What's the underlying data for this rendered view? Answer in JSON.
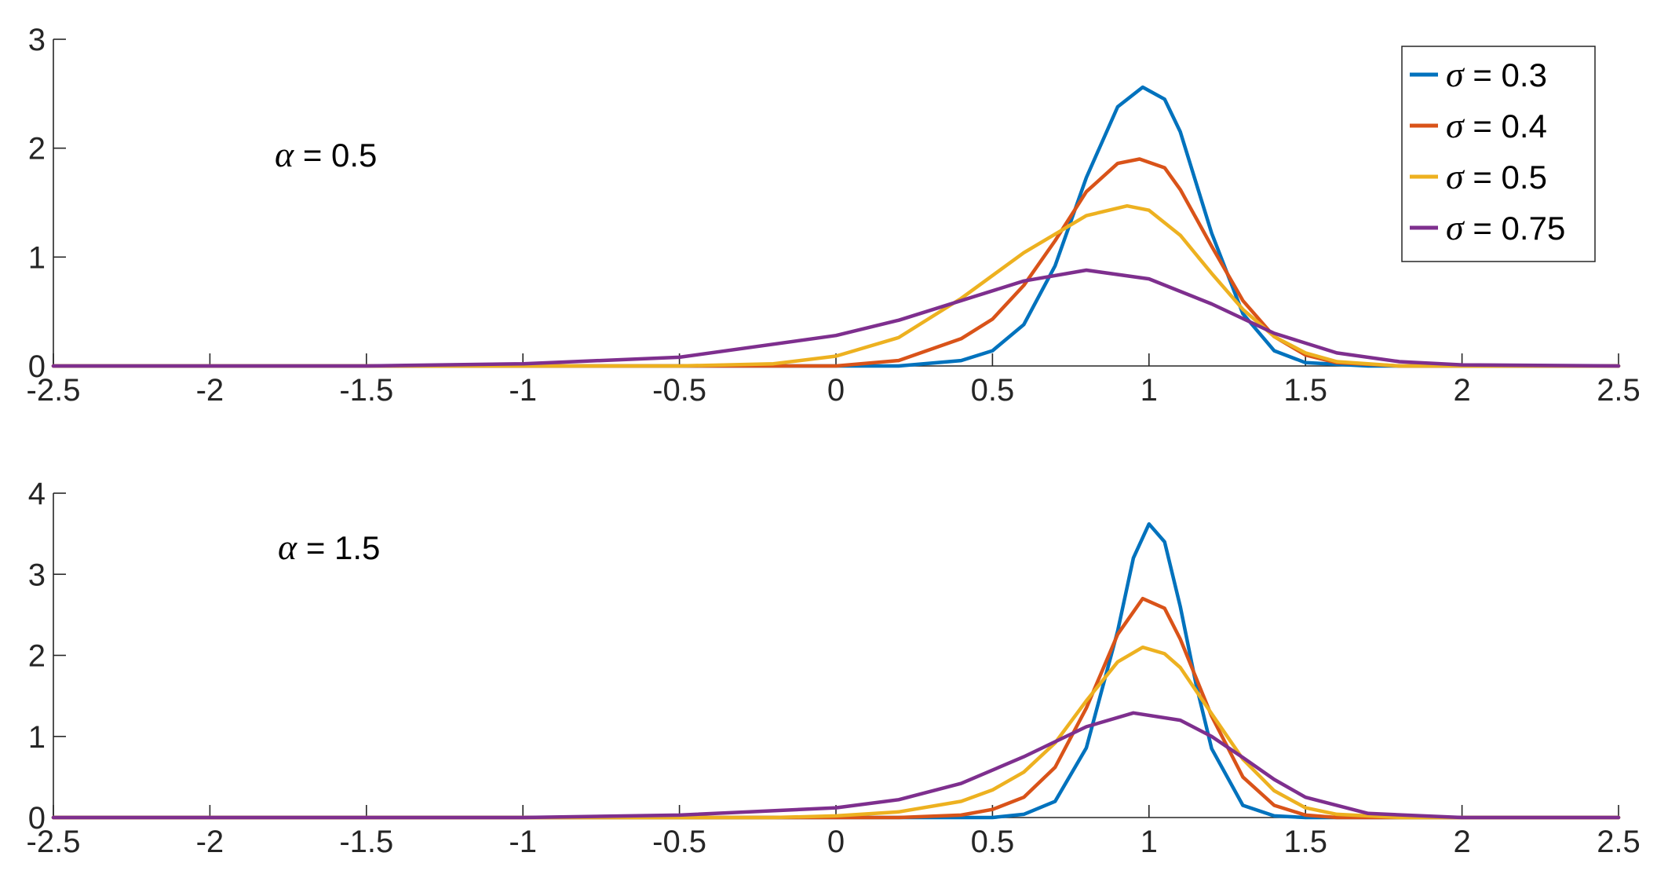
{
  "chart_data": [
    {
      "type": "line",
      "panel": "top",
      "annotation": {
        "symbol": "α",
        "text": " = 0.5"
      },
      "xlim": [
        -2.5,
        2.5
      ],
      "ylim": [
        0,
        3
      ],
      "xticks": [
        "-2.5",
        "-2",
        "-1.5",
        "-1",
        "-0.5",
        "0",
        "0.5",
        "1",
        "1.5",
        "2",
        "2.5"
      ],
      "yticks": [
        "0",
        "1",
        "2",
        "3"
      ],
      "grid": false,
      "legend": {
        "placement": "top-right",
        "entries": [
          {
            "symbol": "σ",
            "text": " = 0.3"
          },
          {
            "symbol": "σ",
            "text": " = 0.4"
          },
          {
            "symbol": "σ",
            "text": " = 0.5"
          },
          {
            "symbol": "σ",
            "text": " = 0.75"
          }
        ]
      },
      "series": [
        {
          "name": "σ = 0.3",
          "color": "#0072BD",
          "x": [
            -2.5,
            0.2,
            0.4,
            0.5,
            0.6,
            0.7,
            0.8,
            0.9,
            0.98,
            1.05,
            1.1,
            1.2,
            1.3,
            1.4,
            1.5,
            1.7,
            2.5
          ],
          "y": [
            0,
            0.0,
            0.05,
            0.14,
            0.38,
            0.92,
            1.73,
            2.38,
            2.56,
            2.45,
            2.15,
            1.22,
            0.48,
            0.14,
            0.03,
            0.0,
            0
          ]
        },
        {
          "name": "σ = 0.4",
          "color": "#D95319",
          "x": [
            -2.5,
            0.0,
            0.2,
            0.4,
            0.5,
            0.6,
            0.7,
            0.8,
            0.9,
            0.97,
            1.05,
            1.1,
            1.2,
            1.3,
            1.4,
            1.5,
            1.6,
            1.8,
            2.5
          ],
          "y": [
            0,
            0.0,
            0.05,
            0.25,
            0.43,
            0.74,
            1.15,
            1.6,
            1.86,
            1.9,
            1.82,
            1.62,
            1.1,
            0.6,
            0.27,
            0.1,
            0.03,
            0.0,
            0
          ]
        },
        {
          "name": "σ = 0.5",
          "color": "#EDB120",
          "x": [
            -2.5,
            -0.5,
            -0.2,
            0.0,
            0.2,
            0.4,
            0.6,
            0.8,
            0.93,
            1.0,
            1.1,
            1.2,
            1.3,
            1.4,
            1.5,
            1.6,
            1.8,
            2.5
          ],
          "y": [
            0,
            0.0,
            0.02,
            0.09,
            0.26,
            0.62,
            1.04,
            1.38,
            1.47,
            1.43,
            1.2,
            0.85,
            0.52,
            0.27,
            0.12,
            0.04,
            0.0,
            0
          ]
        },
        {
          "name": "σ = 0.75",
          "color": "#7E2F8E",
          "x": [
            -2.5,
            -1.5,
            -1.0,
            -0.5,
            0.0,
            0.2,
            0.4,
            0.6,
            0.8,
            1.0,
            1.2,
            1.4,
            1.6,
            1.8,
            2.0,
            2.5
          ],
          "y": [
            0,
            0.0,
            0.02,
            0.08,
            0.28,
            0.42,
            0.6,
            0.78,
            0.88,
            0.8,
            0.57,
            0.3,
            0.12,
            0.04,
            0.01,
            0
          ]
        }
      ]
    },
    {
      "type": "line",
      "panel": "bottom",
      "annotation": {
        "symbol": "α",
        "text": " = 1.5"
      },
      "xlim": [
        -2.5,
        2.5
      ],
      "ylim": [
        0,
        4
      ],
      "xticks": [
        "-2.5",
        "-2",
        "-1.5",
        "-1",
        "-0.5",
        "0",
        "0.5",
        "1",
        "1.5",
        "2",
        "2.5"
      ],
      "yticks": [
        "0",
        "1",
        "2",
        "3",
        "4"
      ],
      "grid": false,
      "series": [
        {
          "name": "σ = 0.3",
          "color": "#0072BD",
          "x": [
            -2.5,
            0.5,
            0.6,
            0.7,
            0.8,
            0.9,
            0.95,
            1.0,
            1.05,
            1.1,
            1.15,
            1.2,
            1.3,
            1.4,
            1.5,
            2.5
          ],
          "y": [
            0,
            0.0,
            0.04,
            0.2,
            0.86,
            2.3,
            3.2,
            3.62,
            3.4,
            2.6,
            1.65,
            0.85,
            0.15,
            0.02,
            0.0,
            0
          ]
        },
        {
          "name": "σ = 0.4",
          "color": "#D95319",
          "x": [
            -2.5,
            0.2,
            0.4,
            0.5,
            0.6,
            0.7,
            0.8,
            0.9,
            0.98,
            1.05,
            1.1,
            1.2,
            1.3,
            1.4,
            1.5,
            1.6,
            2.5
          ],
          "y": [
            0,
            0.0,
            0.03,
            0.1,
            0.25,
            0.62,
            1.35,
            2.26,
            2.7,
            2.58,
            2.2,
            1.25,
            0.5,
            0.15,
            0.03,
            0.0,
            0
          ]
        },
        {
          "name": "σ = 0.5",
          "color": "#EDB120",
          "x": [
            -2.5,
            -0.2,
            0.0,
            0.2,
            0.4,
            0.5,
            0.6,
            0.7,
            0.8,
            0.9,
            0.98,
            1.05,
            1.1,
            1.2,
            1.3,
            1.4,
            1.5,
            1.6,
            1.8,
            2.5
          ],
          "y": [
            0,
            0.0,
            0.02,
            0.07,
            0.2,
            0.34,
            0.56,
            0.92,
            1.44,
            1.92,
            2.1,
            2.02,
            1.85,
            1.28,
            0.72,
            0.33,
            0.12,
            0.04,
            0.0,
            0
          ]
        },
        {
          "name": "σ = 0.75",
          "color": "#7E2F8E",
          "x": [
            -2.5,
            -1.0,
            -0.5,
            0.0,
            0.2,
            0.4,
            0.6,
            0.8,
            0.95,
            1.1,
            1.2,
            1.3,
            1.4,
            1.5,
            1.7,
            2.0,
            2.5
          ],
          "y": [
            0,
            0.0,
            0.03,
            0.12,
            0.22,
            0.42,
            0.75,
            1.12,
            1.29,
            1.2,
            1.0,
            0.74,
            0.47,
            0.25,
            0.05,
            0.0,
            0
          ]
        }
      ]
    }
  ]
}
